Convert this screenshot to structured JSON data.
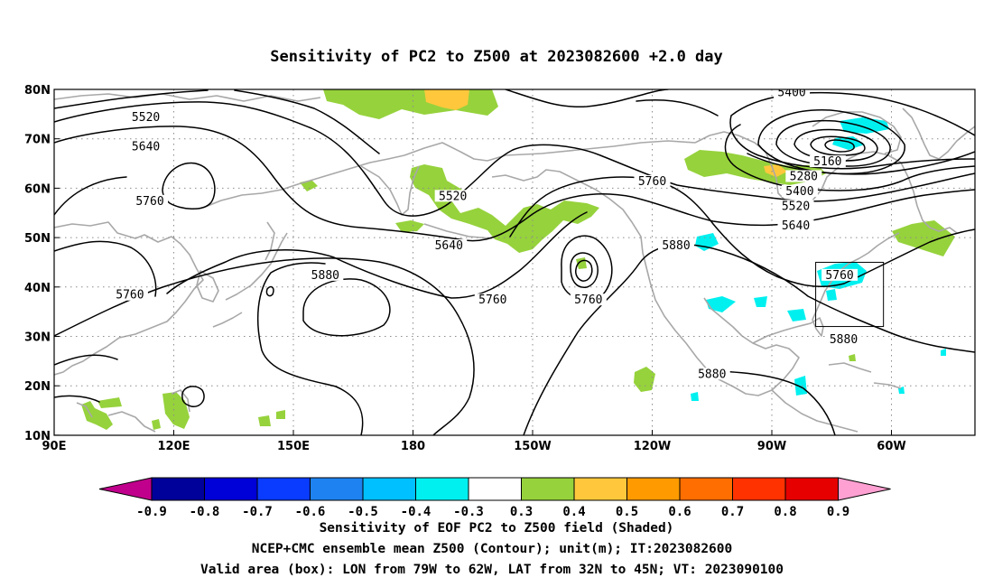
{
  "chart_data": {
    "type": "map",
    "title": "Sensitivity of PC2 to Z500 at 2023082600 +2.0 day",
    "lon_ticks": [
      "90E",
      "120E",
      "150E",
      "180",
      "150W",
      "120W",
      "90W",
      "60W"
    ],
    "lat_ticks": [
      "80N",
      "70N",
      "60N",
      "50N",
      "40N",
      "30N",
      "20N",
      "10N"
    ],
    "colorbar_labels": [
      "-0.9",
      "-0.8",
      "-0.7",
      "-0.6",
      "-0.5",
      "-0.4",
      "-0.3",
      "0.3",
      "0.4",
      "0.5",
      "0.6",
      "0.7",
      "0.8",
      "0.9"
    ],
    "colors": {
      "lt_m09": "#c0008c",
      "m09_m08": "#00009a",
      "m08_m07": "#0000d8",
      "m07_m06": "#0a3cff",
      "m06_m05": "#1e82f0",
      "m05_m04": "#00c0ff",
      "m04_m03": "#00f0f0",
      "m03_p03": "#ffffff",
      "p03_p04": "#96d23c",
      "p04_p05": "#ffc83c",
      "p05_p06": "#ff9b00",
      "p06_p07": "#ff6e00",
      "p07_p08": "#ff3200",
      "p08_p09": "#e60000",
      "gt_p09": "#ffa0d2",
      "coast": "#a8a8a8",
      "contour": "#000000",
      "grid": "#8c8c8c"
    },
    "contour_labels": [
      {
        "text": "5520",
        "lon": 113,
        "lat": 74
      },
      {
        "text": "5640",
        "lon": 113,
        "lat": 68
      },
      {
        "text": "5760",
        "lon": 114,
        "lat": 57
      },
      {
        "text": "5760",
        "lon": 109,
        "lat": 38
      },
      {
        "text": "5880",
        "lon": 158,
        "lat": 42
      },
      {
        "text": "5520",
        "lon": -170,
        "lat": 58
      },
      {
        "text": "5640",
        "lon": -171,
        "lat": 48
      },
      {
        "text": "5760",
        "lon": -160,
        "lat": 37
      },
      {
        "text": "5760",
        "lon": -136,
        "lat": 37
      },
      {
        "text": "5760",
        "lon": -120,
        "lat": 61
      },
      {
        "text": "5880",
        "lon": -114,
        "lat": 48
      },
      {
        "text": "5880",
        "lon": -105,
        "lat": 22
      },
      {
        "text": "5400",
        "lon": -85,
        "lat": 79
      },
      {
        "text": "5160",
        "lon": -76,
        "lat": 65
      },
      {
        "text": "5280",
        "lon": -82,
        "lat": 62
      },
      {
        "text": "5400",
        "lon": -83,
        "lat": 59
      },
      {
        "text": "5520",
        "lon": -84,
        "lat": 56
      },
      {
        "text": "5640",
        "lon": -84,
        "lat": 52
      },
      {
        "text": "5760",
        "lon": -73,
        "lat": 42
      },
      {
        "text": "5880",
        "lon": -72,
        "lat": 29
      }
    ],
    "valid_box": {
      "lon_min": -79,
      "lon_max": -62,
      "lat_min": 32,
      "lat_max": 45
    }
  },
  "caption": {
    "line1": "Sensitivity of EOF PC2 to Z500 field (Shaded)",
    "line2": "NCEP+CMC ensemble mean Z500 (Contour); unit(m); IT:2023082600",
    "line3": "Valid area (box): LON from 79W to 62W, LAT from 32N to 45N; VT: 2023090100"
  }
}
